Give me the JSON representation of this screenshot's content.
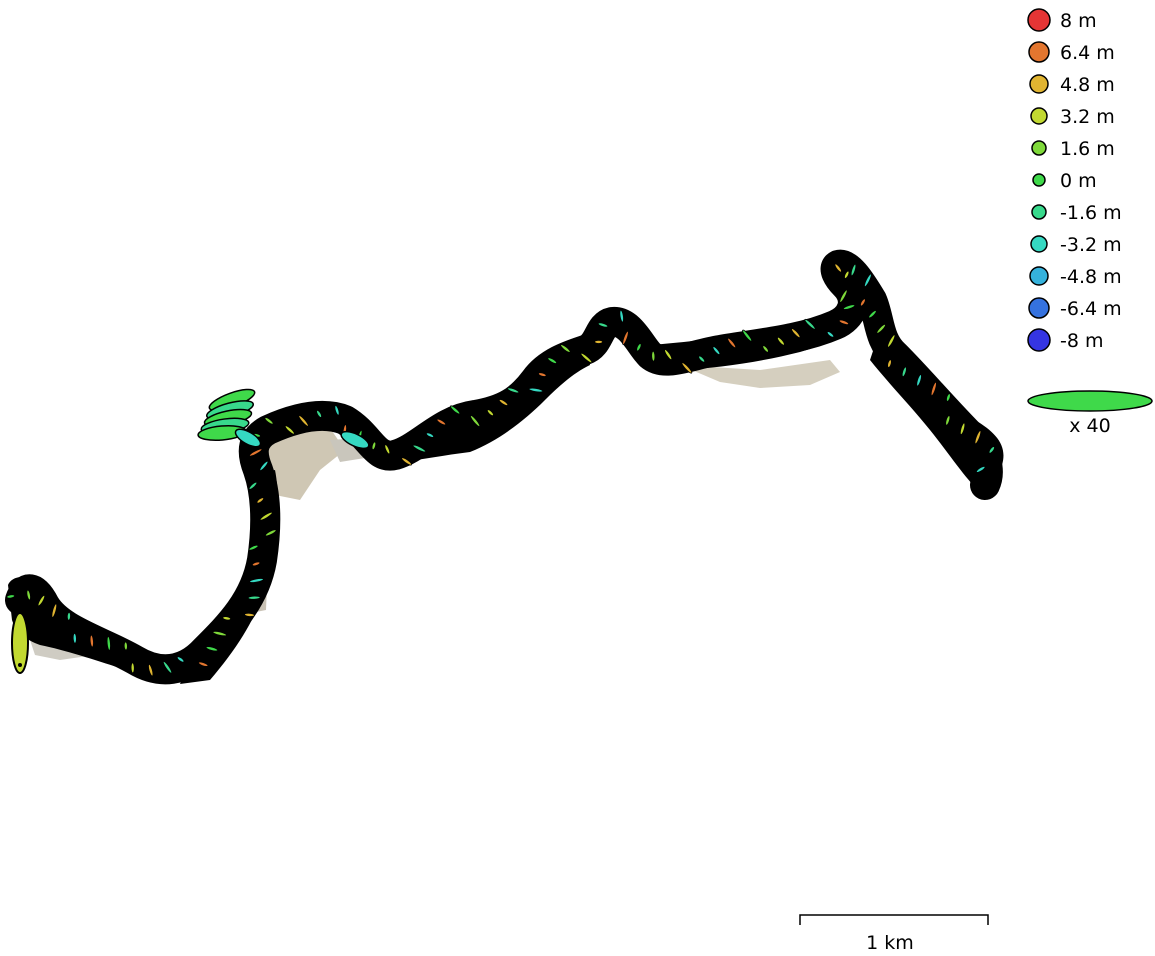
{
  "legend": {
    "items": [
      {
        "label": "8 m",
        "color": "#e53535"
      },
      {
        "label": "6.4 m",
        "color": "#e3762f"
      },
      {
        "label": "4.8 m",
        "color": "#e0b431"
      },
      {
        "label": "3.2 m",
        "color": "#c2d931"
      },
      {
        "label": "1.6 m",
        "color": "#7fd93a"
      },
      {
        "label": "0 m",
        "color": "#3fd94a"
      },
      {
        "label": "-1.6 m",
        "color": "#38d98c"
      },
      {
        "label": "-3.2 m",
        "color": "#35d9c2"
      },
      {
        "label": "-4.8 m",
        "color": "#35b2dc"
      },
      {
        "label": "-6.4 m",
        "color": "#3572df"
      },
      {
        "label": "-8 m",
        "color": "#3535e3"
      }
    ],
    "error_scale_label": "x 40",
    "error_scale_color": "#3fd94a"
  },
  "scale_bar": {
    "label": "1 km"
  },
  "track": {
    "stroke_color": "#000000",
    "overlay_colors": [
      "#3fd94a",
      "#7fd93a",
      "#c2d931",
      "#e0b431",
      "#38d98c",
      "#35d9c2",
      "#e3762f"
    ]
  }
}
